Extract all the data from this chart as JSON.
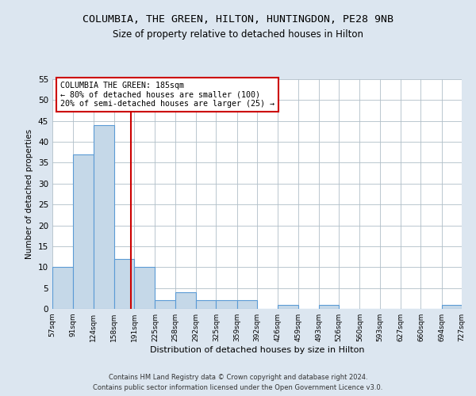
{
  "title1": "COLUMBIA, THE GREEN, HILTON, HUNTINGDON, PE28 9NB",
  "title2": "Size of property relative to detached houses in Hilton",
  "xlabel": "Distribution of detached houses by size in Hilton",
  "ylabel": "Number of detached properties",
  "annotation_title": "COLUMBIA THE GREEN: 185sqm",
  "annotation_line1": "← 80% of detached houses are smaller (100)",
  "annotation_line2": "20% of semi-detached houses are larger (25) →",
  "footer1": "Contains HM Land Registry data © Crown copyright and database right 2024.",
  "footer2": "Contains public sector information licensed under the Open Government Licence v3.0.",
  "bar_edges": [
    57,
    91,
    124,
    158,
    191,
    225,
    258,
    292,
    325,
    359,
    392,
    426,
    459,
    493,
    526,
    560,
    593,
    627,
    660,
    694,
    727
  ],
  "bar_heights": [
    10,
    37,
    44,
    12,
    10,
    2,
    4,
    2,
    2,
    2,
    0,
    1,
    0,
    1,
    0,
    0,
    0,
    0,
    0,
    1
  ],
  "bar_color": "#c5d8e8",
  "bar_edge_color": "#5b9bd5",
  "vline_x": 185,
  "vline_color": "#cc0000",
  "ylim": [
    0,
    55
  ],
  "yticks": [
    0,
    5,
    10,
    15,
    20,
    25,
    30,
    35,
    40,
    45,
    50,
    55
  ],
  "bg_color": "#dce6f0",
  "plot_bg_color": "#ffffff",
  "grid_color": "#b0bec8",
  "annotation_box_color": "#cc0000",
  "title1_fontsize": 9.5,
  "title2_fontsize": 8.5
}
